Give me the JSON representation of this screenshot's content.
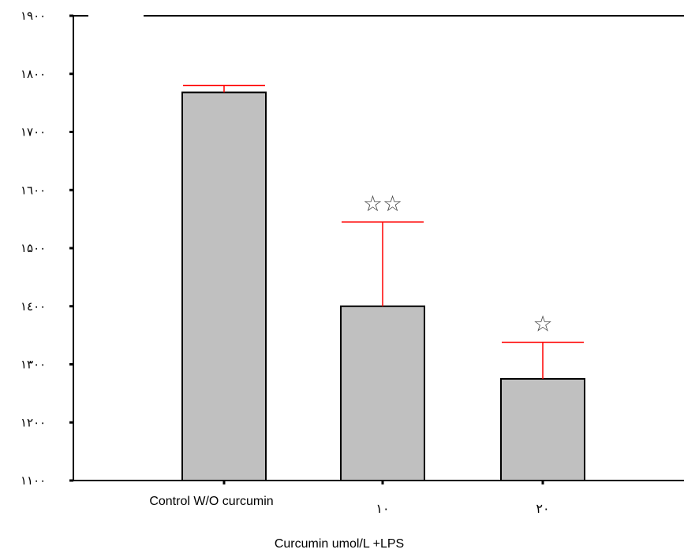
{
  "chart_data": {
    "type": "bar",
    "categories": [
      "Control W/O curcumin",
      "١٠",
      "٢٠"
    ],
    "values": [
      1768,
      1400,
      1275
    ],
    "error_upper": [
      1780,
      1545,
      1338
    ],
    "significance": [
      "",
      "**",
      "*"
    ],
    "xlabel": "Curcumin  umol/L  +LPS",
    "ylabel": "",
    "ylim": [
      1100,
      1900
    ],
    "yticks": [
      1100,
      1200,
      1300,
      1400,
      1500,
      1600,
      1700,
      1800,
      1900
    ],
    "ytick_labels": [
      "١١٠٠",
      "١٢٠٠",
      "١٣٠٠",
      "١٤٠٠",
      "١۵٠٠",
      "١٦٠٠",
      "١٧٠٠",
      "١٨٠٠",
      "١٩٠٠"
    ],
    "bar_color": "#c0c0c0",
    "error_color": "#ff0000",
    "grid": false
  }
}
